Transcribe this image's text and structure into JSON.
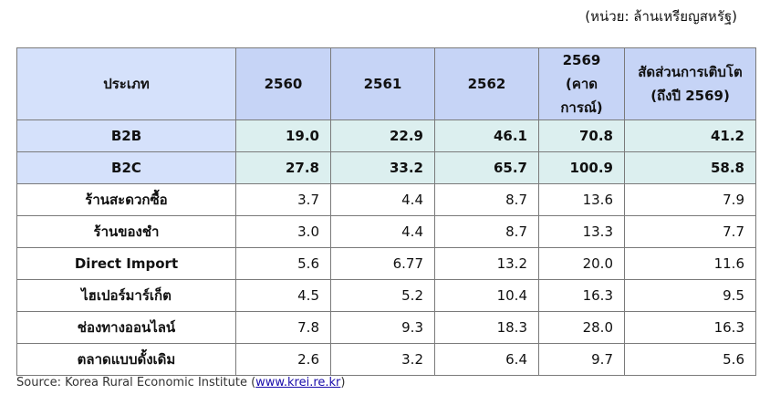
{
  "unit_note": "(หน่วย: ล้านเหรียญสหรัฐ)",
  "table": {
    "header": [
      [
        "ประเภท"
      ],
      [
        "2560"
      ],
      [
        "2561"
      ],
      [
        "2562"
      ],
      [
        "2569",
        "(คาดการณ์)"
      ],
      [
        "สัดส่วนการเติบโต",
        "(ถึงปี 2569)"
      ]
    ],
    "rows": [
      [
        "B2B",
        "19.0",
        "22.9",
        "46.1",
        "70.8",
        "41.2"
      ],
      [
        "B2C",
        "27.8",
        "33.2",
        "65.7",
        "100.9",
        "58.8"
      ],
      [
        "ร้านสะดวกซื้อ",
        "3.7",
        "4.4",
        "8.7",
        "13.6",
        "7.9"
      ],
      [
        "ร้านของชำ",
        "3.0",
        "4.4",
        "8.7",
        "13.3",
        "7.7"
      ],
      [
        "Direct Import",
        "5.6",
        "6.77",
        "13.2",
        "20.0",
        "11.6"
      ],
      [
        "ไฮเปอร์มาร์เก็ต",
        "4.5",
        "5.2",
        "10.4",
        "16.3",
        "9.5"
      ],
      [
        "ช่องทางออนไลน์",
        "7.8",
        "9.3",
        "18.3",
        "28.0",
        "16.3"
      ],
      [
        "ตลาดแบบดั้งเดิม",
        "2.6",
        "3.2",
        "6.4",
        "9.7",
        "5.6"
      ]
    ]
  },
  "source": {
    "text": "Source: Korea Rural Economic Institute (",
    "link": "www.krei.re.kr",
    "close": ")"
  }
}
